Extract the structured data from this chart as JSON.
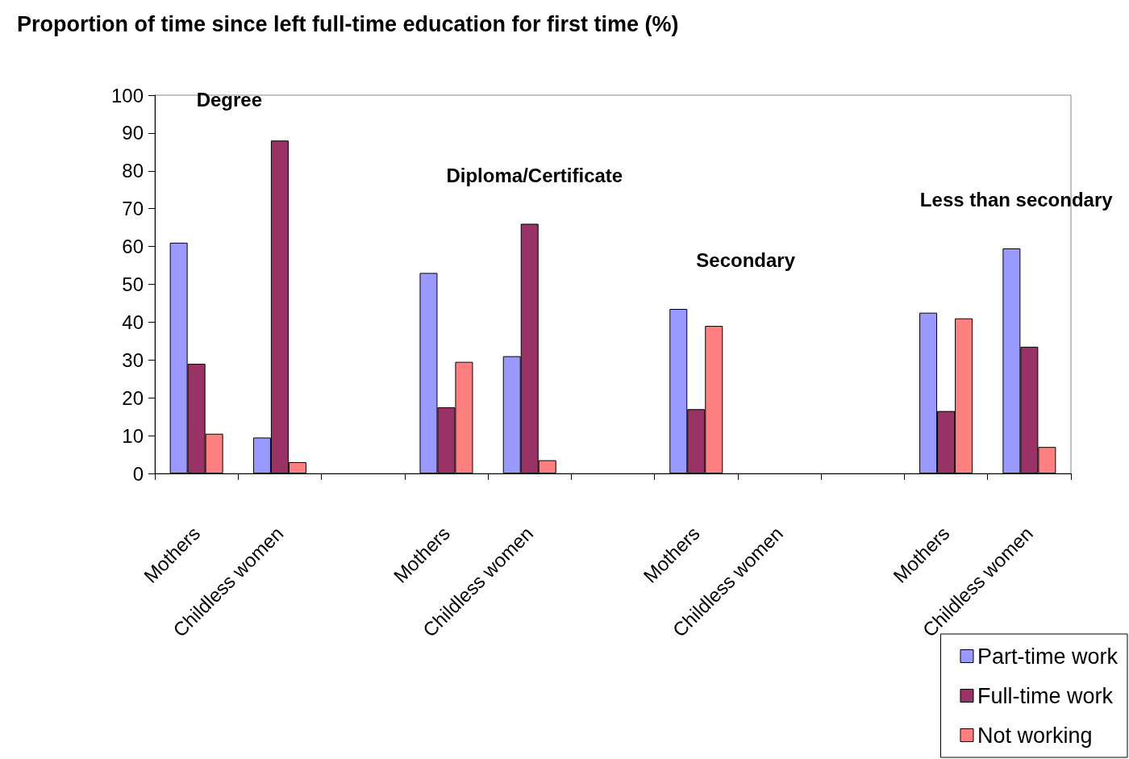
{
  "chart_data": {
    "type": "bar",
    "title": "Proportion of time since left full-time education for first time (%)",
    "categories": [
      "Mothers",
      "Childless women",
      null,
      "Mothers",
      "Childless women",
      null,
      "Mothers",
      "Childless women",
      null,
      "Mothers",
      "Childless women"
    ],
    "series": [
      {
        "name": "Part-time work",
        "color": "#9999ff",
        "values": [
          61,
          9.5,
          null,
          53,
          31,
          null,
          43.5,
          null,
          null,
          42.5,
          59.5
        ]
      },
      {
        "name": "Full-time work",
        "color": "#993366",
        "values": [
          29,
          88,
          null,
          17.5,
          66,
          null,
          17,
          null,
          null,
          16.5,
          33.5
        ]
      },
      {
        "name": "Not working",
        "color": "#ff8080",
        "values": [
          10.5,
          3,
          null,
          29.5,
          3.5,
          null,
          39,
          null,
          null,
          41,
          7
        ]
      }
    ],
    "annotations": [
      "Degree",
      "Diploma/Certificate",
      "Secondary",
      "Less than secondary"
    ],
    "ylim": [
      0,
      100
    ],
    "yticks": [
      0,
      10,
      20,
      30,
      40,
      50,
      60,
      70,
      80,
      90,
      100
    ],
    "grid": false,
    "legend": "bottom right"
  }
}
